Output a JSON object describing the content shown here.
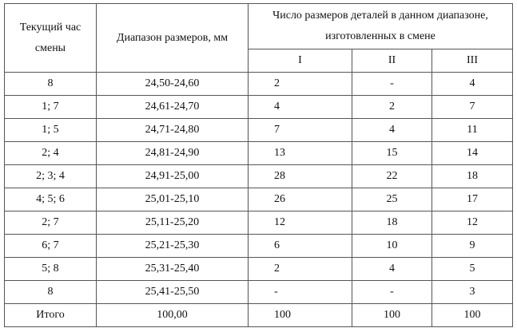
{
  "table": {
    "header": {
      "hour": "Текущий час смены",
      "range": "Диапазон размеров, мм",
      "count": "Число размеров деталей в данном диапазоне, изготовленных в смене",
      "shifts": [
        "I",
        "II",
        "III"
      ]
    },
    "rows": [
      [
        "8",
        "24,50-24,60",
        "2",
        "-",
        "4"
      ],
      [
        "1; 7",
        "24,61-24,70",
        "4",
        "2",
        "7"
      ],
      [
        "1; 5",
        "24,71-24,80",
        "7",
        "4",
        "11"
      ],
      [
        "2; 4",
        "24,81-24,90",
        "13",
        "15",
        "14"
      ],
      [
        "2; 3; 4",
        "24,91-25,00",
        "28",
        "22",
        "18"
      ],
      [
        "4; 5; 6",
        "25,01-25,10",
        "26",
        "25",
        "17"
      ],
      [
        "2; 7",
        "25,11-25,20",
        "12",
        "18",
        "12"
      ],
      [
        "6; 7",
        "25,21-25,30",
        "6",
        "10",
        "9"
      ],
      [
        "5; 8",
        "25,31-25,40",
        "2",
        "4",
        "5"
      ],
      [
        "8",
        "25,41-25,50",
        "-",
        "-",
        "3"
      ],
      [
        "Итого",
        "100,00",
        "100",
        "100",
        "100"
      ]
    ]
  }
}
